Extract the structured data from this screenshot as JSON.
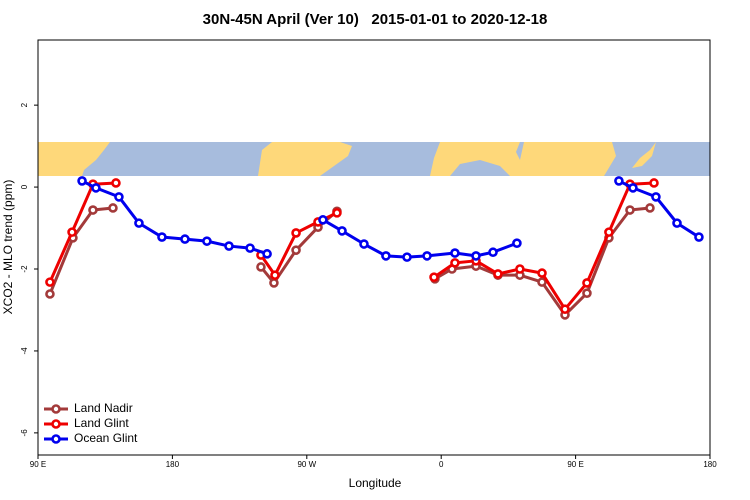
{
  "chart_data": {
    "type": "line",
    "title": "30N-45N April (Ver 10)   2015-01-01 to 2020-12-18",
    "xlabel": "Longitude",
    "ylabel": "XCO2 - MLO trend (ppm)",
    "xlim": [
      90,
      540
    ],
    "ylim": [
      -6.54,
      3.59
    ],
    "xticks": [
      {
        "value": 90,
        "label": "90 E"
      },
      180,
      {
        "value": 270,
        "label": "90 W"
      },
      {
        "value": 360,
        "label": "0"
      },
      {
        "value": 450,
        "label": "90 E"
      },
      {
        "value": 540,
        "label": "180"
      }
    ],
    "yticks": [
      -6,
      -4,
      -2,
      0,
      2
    ],
    "legend": "bottom-left",
    "series": [
      {
        "name": "Land Nadir",
        "color": "#a33a3a",
        "x": [
          98,
          113.4,
          126.8,
          140.2,
          190,
          239.3,
          248,
          262.8,
          277.5,
          290.2,
          320,
          355.8,
          367.2,
          383.3,
          398,
          412.7,
          427.5,
          442.9,
          457.6,
          472.3,
          486.4,
          499.8
        ],
        "values": [
          -2.61,
          -1.24,
          -0.56,
          -0.51,
          null,
          -1.95,
          -2.34,
          -1.54,
          -0.98,
          -0.59,
          null,
          -2.24,
          -2.0,
          -1.93,
          -2.15,
          -2.15,
          -2.32,
          -3.12,
          -2.59,
          -1.24,
          -0.56,
          -0.51
        ]
      },
      {
        "name": "Land Glint",
        "color": "#ee0000",
        "x": [
          98,
          112.8,
          126.8,
          142.2,
          190,
          239.3,
          248.7,
          262.8,
          277.5,
          290.2,
          320,
          355.2,
          369.2,
          383.3,
          398,
          412.7,
          427.5,
          442.9,
          457.6,
          472.3,
          486.4,
          502.5
        ],
        "values": [
          -2.32,
          -1.1,
          0.07,
          0.1,
          null,
          -1.66,
          -2.15,
          -1.12,
          -0.85,
          -0.63,
          null,
          -2.2,
          -1.85,
          -1.8,
          -2.12,
          -2.0,
          -2.1,
          -2.98,
          -2.34,
          -1.1,
          0.07,
          0.1
        ]
      },
      {
        "name": "Ocean Glint",
        "color": "#0000ee",
        "x": [
          119.5,
          128.8,
          144.2,
          157.6,
          173,
          188.4,
          203.1,
          217.9,
          232,
          243.4,
          262,
          280.8,
          293.6,
          308.3,
          323,
          337.1,
          350.5,
          369.2,
          383.3,
          394.7,
          410.7,
          445,
          479,
          488.4,
          503.8,
          517.9,
          532.6
        ],
        "values": [
          0.15,
          -0.02,
          -0.24,
          -0.88,
          -1.22,
          -1.27,
          -1.32,
          -1.44,
          -1.49,
          -1.63,
          null,
          -0.8,
          -1.07,
          -1.39,
          -1.68,
          -1.71,
          -1.68,
          -1.61,
          -1.68,
          -1.59,
          -1.37,
          null,
          0.15,
          -0.02,
          -0.24,
          -0.88,
          -1.22
        ]
      }
    ]
  }
}
